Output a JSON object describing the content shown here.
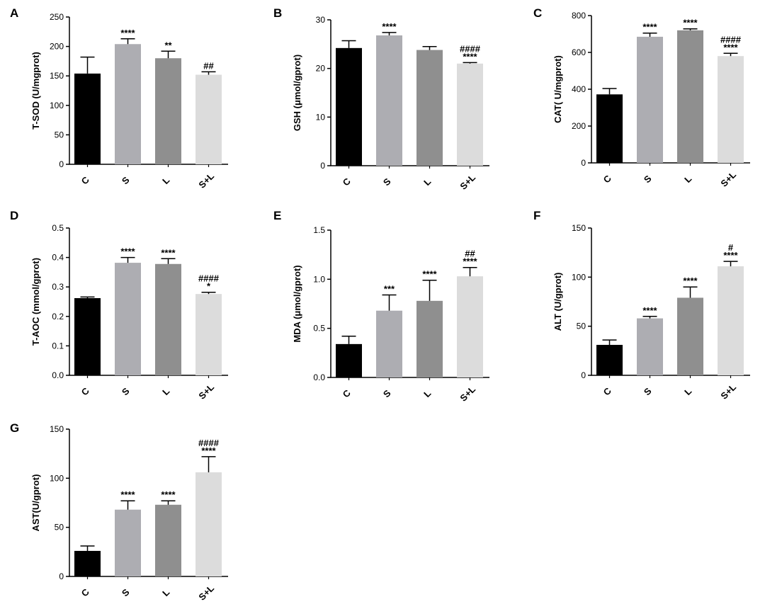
{
  "colors": {
    "C": "#000000",
    "S": "#adadb2",
    "L": "#8f8f8f",
    "S+L": "#dcdcdc"
  },
  "chart_data": [
    {
      "panel": "A",
      "type": "bar",
      "categories": [
        "C",
        "S",
        "L",
        "S+L"
      ],
      "values": [
        154,
        204,
        180,
        152
      ],
      "errors": [
        28,
        9,
        12,
        5
      ],
      "ylabel": "T-SOD (U/mgprot)",
      "ylim": [
        0,
        250
      ],
      "yticks": [
        "0",
        "50",
        "100",
        "150",
        "200",
        "250"
      ],
      "annotations": [
        [],
        [
          "****"
        ],
        [
          "**"
        ],
        [
          "##"
        ]
      ]
    },
    {
      "panel": "B",
      "type": "bar",
      "categories": [
        "C",
        "S",
        "L",
        "S+L"
      ],
      "values": [
        24.2,
        26.8,
        23.8,
        21.0
      ],
      "errors": [
        1.5,
        0.6,
        0.7,
        0.2
      ],
      "ylabel": "GSH (μmol/gprot)",
      "ylim": [
        0,
        30
      ],
      "yticks": [
        "0",
        "10",
        "20",
        "30"
      ],
      "annotations": [
        [],
        [
          "****"
        ],
        [],
        [
          "####",
          "****"
        ]
      ]
    },
    {
      "panel": "C",
      "type": "bar",
      "categories": [
        "C",
        "S",
        "L",
        "S+L"
      ],
      "values": [
        372,
        685,
        720,
        580
      ],
      "errors": [
        32,
        20,
        8,
        15
      ],
      "ylabel": "CAT( U/mgprot)",
      "ylim": [
        0,
        800
      ],
      "yticks": [
        "0",
        "200",
        "400",
        "600",
        "800"
      ],
      "annotations": [
        [],
        [
          "****"
        ],
        [
          "****"
        ],
        [
          "####",
          "****"
        ]
      ]
    },
    {
      "panel": "D",
      "type": "bar",
      "categories": [
        "C",
        "S",
        "L",
        "S+L"
      ],
      "values": [
        0.262,
        0.382,
        0.378,
        0.276
      ],
      "errors": [
        0.004,
        0.018,
        0.018,
        0.006
      ],
      "ylabel": "T-AOC (mmol/gprot)",
      "ylim": [
        0,
        0.5
      ],
      "yticks": [
        "0.0",
        "0.1",
        "0.2",
        "0.3",
        "0.4",
        "0.5"
      ],
      "annotations": [
        [],
        [
          "****"
        ],
        [
          "****"
        ],
        [
          "####",
          "*"
        ]
      ]
    },
    {
      "panel": "E",
      "type": "bar",
      "categories": [
        "C",
        "S",
        "L",
        "S+L"
      ],
      "values": [
        0.34,
        0.68,
        0.78,
        1.03
      ],
      "errors": [
        0.08,
        0.16,
        0.21,
        0.09
      ],
      "ylabel": "MDA (μmol/gprot)",
      "ylim": [
        0,
        1.5
      ],
      "yticks": [
        "0.0",
        "0.5",
        "1.0",
        "1.5"
      ],
      "annotations": [
        [],
        [
          "***"
        ],
        [
          "****"
        ],
        [
          "##",
          "****"
        ]
      ]
    },
    {
      "panel": "F",
      "type": "bar",
      "categories": [
        "C",
        "S",
        "L",
        "S+L"
      ],
      "values": [
        31,
        58,
        79,
        111
      ],
      "errors": [
        5,
        2,
        11,
        5
      ],
      "ylabel": "ALT (U/gprot)",
      "ylim": [
        0,
        150
      ],
      "yticks": [
        "0",
        "50",
        "100",
        "150"
      ],
      "annotations": [
        [],
        [
          "****"
        ],
        [
          "****"
        ],
        [
          "#",
          "****"
        ]
      ]
    },
    {
      "panel": "G",
      "type": "bar",
      "categories": [
        "C",
        "S",
        "L",
        "S+L"
      ],
      "values": [
        26,
        68,
        73,
        106
      ],
      "errors": [
        5,
        9,
        4,
        16
      ],
      "ylabel": "AST(U/gprot)",
      "ylim": [
        0,
        150
      ],
      "yticks": [
        "0",
        "50",
        "100",
        "150"
      ],
      "annotations": [
        [],
        [
          "****"
        ],
        [
          "****"
        ],
        [
          "####",
          "****"
        ]
      ]
    }
  ]
}
